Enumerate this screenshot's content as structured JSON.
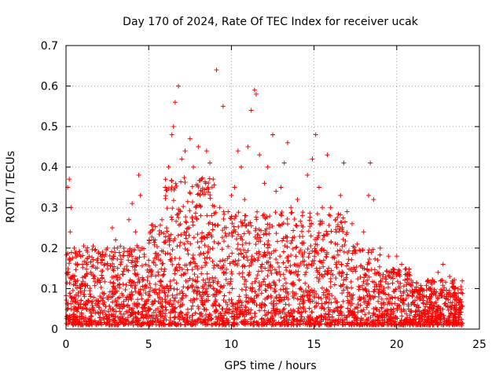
{
  "chart_data": {
    "type": "scatter",
    "title": "Day 170 of 2024, Rate Of TEC Index for receiver ucak",
    "xlabel": "GPS time / hours",
    "ylabel": "ROTI / TECUs",
    "xlim": [
      0,
      25
    ],
    "ylim": [
      0,
      0.7
    ],
    "xticks": [
      "0",
      "5",
      "10",
      "15",
      "20",
      "25"
    ],
    "yticks": [
      "0",
      "0.1",
      "0.2",
      "0.3",
      "0.4",
      "0.5",
      "0.6",
      "0.7"
    ],
    "grid": true,
    "marker": "+",
    "point_color": "#ff0000",
    "series": [
      {
        "values": [
          [
            0.1,
            0.35
          ],
          [
            0.2,
            0.37
          ],
          [
            0.25,
            0.24
          ],
          [
            0.3,
            0.3
          ],
          [
            0.5,
            0.2
          ],
          [
            0.7,
            0.12
          ],
          [
            1.0,
            0.16
          ],
          [
            1.3,
            0.19
          ],
          [
            1.5,
            0.14
          ],
          [
            2.0,
            0.12
          ],
          [
            2.2,
            0.19
          ],
          [
            2.5,
            0.2
          ],
          [
            2.8,
            0.25
          ],
          [
            3.0,
            0.22
          ],
          [
            3.3,
            0.16
          ],
          [
            3.5,
            0.2
          ],
          [
            3.8,
            0.27
          ],
          [
            4.0,
            0.31
          ],
          [
            4.2,
            0.24
          ],
          [
            4.4,
            0.38
          ],
          [
            4.5,
            0.33
          ],
          [
            4.6,
            0.2
          ],
          [
            5.0,
            0.17
          ],
          [
            5.3,
            0.22
          ],
          [
            5.5,
            0.18
          ],
          [
            5.8,
            0.27
          ],
          [
            6.0,
            0.35
          ],
          [
            6.2,
            0.4
          ],
          [
            6.4,
            0.48
          ],
          [
            6.5,
            0.5
          ],
          [
            6.6,
            0.56
          ],
          [
            6.8,
            0.6
          ],
          [
            7.0,
            0.42
          ],
          [
            7.2,
            0.44
          ],
          [
            7.5,
            0.47
          ],
          [
            7.7,
            0.4
          ],
          [
            8.0,
            0.45
          ],
          [
            8.2,
            0.37
          ],
          [
            8.5,
            0.44
          ],
          [
            8.7,
            0.41
          ],
          [
            8.9,
            0.37
          ],
          [
            9.1,
            0.64
          ],
          [
            9.3,
            0.3
          ],
          [
            9.5,
            0.55
          ],
          [
            9.8,
            0.29
          ],
          [
            10.0,
            0.33
          ],
          [
            10.2,
            0.35
          ],
          [
            10.4,
            0.44
          ],
          [
            10.6,
            0.4
          ],
          [
            10.8,
            0.32
          ],
          [
            11.0,
            0.45
          ],
          [
            11.2,
            0.54
          ],
          [
            11.4,
            0.59
          ],
          [
            11.5,
            0.58
          ],
          [
            11.7,
            0.43
          ],
          [
            12.0,
            0.36
          ],
          [
            12.2,
            0.4
          ],
          [
            12.5,
            0.48
          ],
          [
            12.7,
            0.34
          ],
          [
            13.0,
            0.35
          ],
          [
            13.2,
            0.41
          ],
          [
            13.4,
            0.46
          ],
          [
            13.6,
            0.3
          ],
          [
            14.0,
            0.32
          ],
          [
            14.3,
            0.28
          ],
          [
            14.6,
            0.38
          ],
          [
            14.9,
            0.42
          ],
          [
            15.1,
            0.48
          ],
          [
            15.3,
            0.35
          ],
          [
            15.5,
            0.3
          ],
          [
            15.8,
            0.43
          ],
          [
            16.0,
            0.3
          ],
          [
            16.3,
            0.27
          ],
          [
            16.6,
            0.33
          ],
          [
            16.8,
            0.41
          ],
          [
            17.0,
            0.29
          ],
          [
            17.3,
            0.26
          ],
          [
            17.6,
            0.21
          ],
          [
            18.0,
            0.24
          ],
          [
            18.3,
            0.33
          ],
          [
            18.4,
            0.41
          ],
          [
            18.6,
            0.32
          ],
          [
            19.0,
            0.2
          ],
          [
            19.5,
            0.18
          ],
          [
            20.0,
            0.18
          ],
          [
            20.3,
            0.16
          ],
          [
            20.6,
            0.11
          ],
          [
            21.0,
            0.09
          ],
          [
            21.5,
            0.1
          ],
          [
            22.0,
            0.1
          ],
          [
            22.5,
            0.14
          ],
          [
            22.8,
            0.16
          ],
          [
            23.2,
            0.13
          ],
          [
            23.5,
            0.1
          ],
          [
            23.9,
            0.09
          ]
        ]
      }
    ]
  }
}
